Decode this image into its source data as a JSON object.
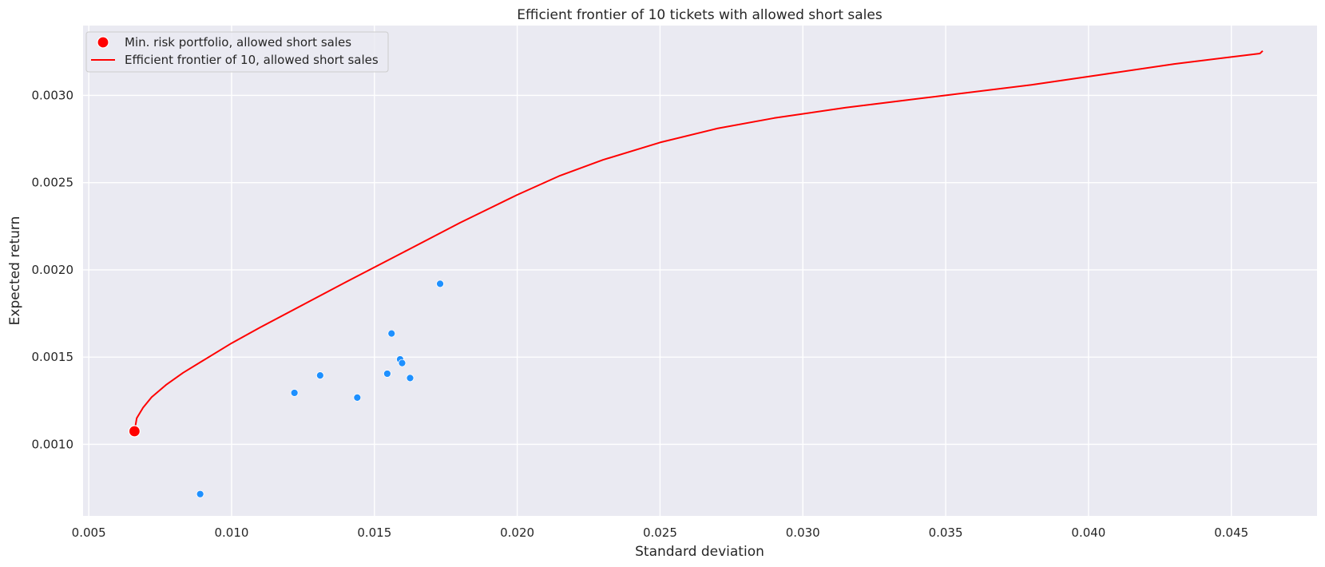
{
  "chart_data": {
    "type": "scatter",
    "title": "Efficient frontier of 10 tickets with allowed short sales",
    "xlabel": "Standard deviation",
    "ylabel": "Expected return",
    "xlim": [
      0.0048,
      0.048
    ],
    "ylim": [
      0.00059,
      0.0034
    ],
    "xticks": [
      {
        "value": 0.005,
        "label": "0.005"
      },
      {
        "value": 0.01,
        "label": "0.010"
      },
      {
        "value": 0.015,
        "label": "0.015"
      },
      {
        "value": 0.02,
        "label": "0.020"
      },
      {
        "value": 0.025,
        "label": "0.025"
      },
      {
        "value": 0.03,
        "label": "0.030"
      },
      {
        "value": 0.035,
        "label": "0.035"
      },
      {
        "value": 0.04,
        "label": "0.040"
      },
      {
        "value": 0.045,
        "label": "0.045"
      }
    ],
    "yticks": [
      {
        "value": 0.001,
        "label": "0.0010"
      },
      {
        "value": 0.0015,
        "label": "0.0015"
      },
      {
        "value": 0.002,
        "label": "0.0020"
      },
      {
        "value": 0.0025,
        "label": "0.0025"
      },
      {
        "value": 0.003,
        "label": "0.0030"
      }
    ],
    "grid": true,
    "legend_position": "top-left",
    "colors": {
      "background": "#eaeaf2",
      "grid": "#ffffff",
      "frontier": "#ff0000",
      "min_risk": "#ff0000",
      "tickers": "#1e90ff"
    },
    "series": [
      {
        "name": "Min. risk portfolio, allowed short sales",
        "kind": "point",
        "points": [
          {
            "x": 0.0066,
            "y": 0.001075
          }
        ]
      },
      {
        "name": "Efficient frontier of 10, allowed short sales",
        "kind": "line",
        "points": [
          {
            "x": 0.0066,
            "y": 0.001075
          },
          {
            "x": 0.00668,
            "y": 0.00115
          },
          {
            "x": 0.0069,
            "y": 0.00121
          },
          {
            "x": 0.0072,
            "y": 0.00127
          },
          {
            "x": 0.0077,
            "y": 0.00134
          },
          {
            "x": 0.0083,
            "y": 0.00141
          },
          {
            "x": 0.009,
            "y": 0.00148
          },
          {
            "x": 0.01,
            "y": 0.00158
          },
          {
            "x": 0.011,
            "y": 0.00167
          },
          {
            "x": 0.0125,
            "y": 0.0018
          },
          {
            "x": 0.014,
            "y": 0.00193
          },
          {
            "x": 0.016,
            "y": 0.0021
          },
          {
            "x": 0.018,
            "y": 0.00227
          },
          {
            "x": 0.02,
            "y": 0.00243
          },
          {
            "x": 0.0215,
            "y": 0.00254
          },
          {
            "x": 0.023,
            "y": 0.00263
          },
          {
            "x": 0.025,
            "y": 0.00273
          },
          {
            "x": 0.027,
            "y": 0.00281
          },
          {
            "x": 0.029,
            "y": 0.00287
          },
          {
            "x": 0.0315,
            "y": 0.00293
          },
          {
            "x": 0.035,
            "y": 0.003
          },
          {
            "x": 0.038,
            "y": 0.00306
          },
          {
            "x": 0.0405,
            "y": 0.00312
          },
          {
            "x": 0.043,
            "y": 0.00318
          },
          {
            "x": 0.046,
            "y": 0.00324
          },
          {
            "x": 0.0461,
            "y": 0.003255
          }
        ]
      },
      {
        "kind": "scatter",
        "points": [
          {
            "x": 0.0089,
            "y": 0.000715
          },
          {
            "x": 0.0122,
            "y": 0.001295
          },
          {
            "x": 0.0131,
            "y": 0.001395
          },
          {
            "x": 0.0144,
            "y": 0.001268
          },
          {
            "x": 0.01545,
            "y": 0.001405
          },
          {
            "x": 0.0156,
            "y": 0.001635
          },
          {
            "x": 0.0159,
            "y": 0.001487
          },
          {
            "x": 0.01597,
            "y": 0.001466
          },
          {
            "x": 0.01625,
            "y": 0.00138
          },
          {
            "x": 0.0173,
            "y": 0.00192
          }
        ]
      }
    ]
  }
}
